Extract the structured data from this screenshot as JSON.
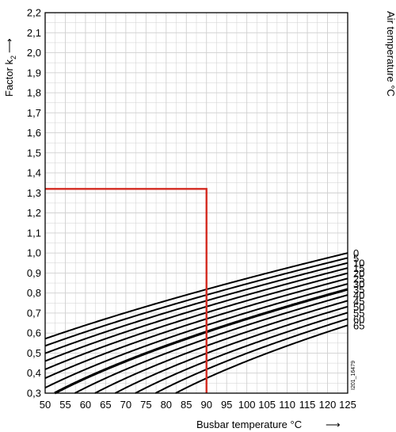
{
  "chart_data": {
    "type": "line",
    "ylabel": "Factor k",
    "ylabel_sub": "2",
    "ylabel_arrow": "⟶",
    "xlabel": "Busbar temperature °C",
    "xlabel_arrow": "⟶",
    "right_axis_label": "Air temperature °C",
    "reference_code": "I201_16479",
    "xlim": [
      50,
      125
    ],
    "ylim": [
      0.3,
      2.2
    ],
    "x_ticks": [
      "50",
      "55",
      "60",
      "65",
      "70",
      "75",
      "80",
      "85",
      "90",
      "95",
      "100",
      "105",
      "110",
      "115",
      "120",
      "125"
    ],
    "y_ticks": [
      "2,2",
      "2,1",
      "2,0",
      "1,9",
      "1,8",
      "1,7",
      "1,6",
      "1,5",
      "1,4",
      "1,3",
      "1,2",
      "1,1",
      "1,0",
      "0,9",
      "0,8",
      "0,7",
      "0,6",
      "0,5",
      "0,4",
      "0,3"
    ],
    "minor_grid": {
      "x_step": 2.5,
      "y_step": 0.05
    },
    "curve_model": {
      "exponent": 0.61,
      "reference_busbar": 125,
      "reference_air": 0
    },
    "series": [
      {
        "name": "0",
        "air_temp": 0,
        "bold": false
      },
      {
        "name": "5",
        "air_temp": 5,
        "bold": false
      },
      {
        "name": "10",
        "air_temp": 10,
        "bold": false
      },
      {
        "name": "15",
        "air_temp": 15,
        "bold": false
      },
      {
        "name": "20",
        "air_temp": 20,
        "bold": false
      },
      {
        "name": "25",
        "air_temp": 25,
        "bold": false
      },
      {
        "name": "30",
        "air_temp": 30,
        "bold": false
      },
      {
        "name": "35",
        "air_temp": 35,
        "bold": true
      },
      {
        "name": "40",
        "air_temp": 40,
        "bold": false
      },
      {
        "name": "45",
        "air_temp": 45,
        "bold": false
      },
      {
        "name": "50",
        "air_temp": 50,
        "bold": false
      },
      {
        "name": "55",
        "air_temp": 55,
        "bold": false
      },
      {
        "name": "60",
        "air_temp": 60,
        "bold": false
      },
      {
        "name": "65",
        "air_temp": 65,
        "bold": false
      }
    ],
    "example": {
      "busbar_temp": 90,
      "factor": 1.32,
      "color": "#d42a20"
    },
    "colors": {
      "curve": "#000000",
      "grid": "#cfcfcf",
      "frame": "#000000"
    }
  }
}
